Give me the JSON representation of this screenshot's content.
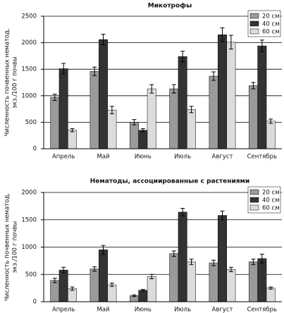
{
  "chart_data": [
    {
      "type": "bar",
      "title": "Микотрофы",
      "ylabel": [
        "Численность почвенных нематод,",
        "экз./100 г почвы"
      ],
      "categories": [
        "Апрель",
        "Май",
        "Июнь",
        "Июль",
        "Август",
        "Сентябрь"
      ],
      "series": [
        {
          "name": "20 см",
          "color": "#9a9a9a",
          "values": [
            970,
            1460,
            500,
            1130,
            1370,
            1190
          ],
          "errors": [
            60,
            80,
            50,
            80,
            80,
            60
          ]
        },
        {
          "name": "40 см",
          "color": "#333333",
          "values": [
            1510,
            2060,
            350,
            1740,
            2150,
            1940
          ],
          "errors": [
            100,
            100,
            30,
            100,
            130,
            110
          ]
        },
        {
          "name": "60 см",
          "color": "#dcdcdc",
          "values": [
            350,
            730,
            1130,
            740,
            2010,
            520
          ],
          "errors": [
            30,
            70,
            80,
            60,
            130,
            40
          ]
        }
      ],
      "ylim": [
        0,
        2500
      ],
      "yticks": [
        0,
        500,
        1000,
        1500,
        2000,
        2500
      ],
      "grid": true,
      "legend": "upper right"
    },
    {
      "type": "bar",
      "title": "Нематоды, ассоциированные с растениями",
      "ylabel": [
        "Численность почвенных нематод,",
        "экз./100 г почвы"
      ],
      "categories": [
        "Апрель",
        "Май",
        "Июнь",
        "Июль",
        "Август",
        "Сентябрь"
      ],
      "series": [
        {
          "name": "20 см",
          "color": "#9a9a9a",
          "values": [
            390,
            600,
            110,
            880,
            710,
            730
          ],
          "errors": [
            40,
            40,
            15,
            50,
            50,
            50
          ]
        },
        {
          "name": "40 см",
          "color": "#333333",
          "values": [
            580,
            950,
            210,
            1640,
            1580,
            790
          ],
          "errors": [
            50,
            80,
            15,
            70,
            80,
            80
          ]
        },
        {
          "name": "60 см",
          "color": "#dcdcdc",
          "values": [
            240,
            310,
            460,
            730,
            590,
            250
          ],
          "errors": [
            30,
            30,
            40,
            50,
            40,
            20
          ]
        }
      ],
      "ylim": [
        0,
        2000
      ],
      "yticks": [
        0,
        500,
        1000,
        1500,
        2000
      ],
      "grid": true,
      "legend": "upper right"
    }
  ]
}
